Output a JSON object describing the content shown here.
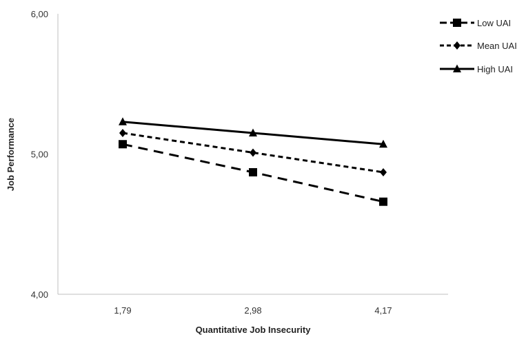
{
  "chart_data": {
    "type": "line",
    "title": "",
    "xlabel": "Quantitative Job Insecurity",
    "ylabel": "Job Performance",
    "x": [
      "1,79",
      "2,98",
      "4,17"
    ],
    "y_ticks": [
      "4,00",
      "5,00",
      "6,00"
    ],
    "ylim": [
      4.0,
      6.0
    ],
    "grid": false,
    "legend_position": "top-right",
    "series": [
      {
        "name": "Low UAI",
        "marker": "square",
        "dash": "long-dash",
        "color": "#000000",
        "values": [
          5.07,
          4.87,
          4.66
        ]
      },
      {
        "name": "Mean UAI",
        "marker": "diamond",
        "dash": "short-dash",
        "color": "#000000",
        "values": [
          5.15,
          5.01,
          4.87
        ]
      },
      {
        "name": "High UAI",
        "marker": "triangle",
        "dash": "solid",
        "color": "#000000",
        "values": [
          5.23,
          5.15,
          5.07
        ]
      }
    ]
  }
}
